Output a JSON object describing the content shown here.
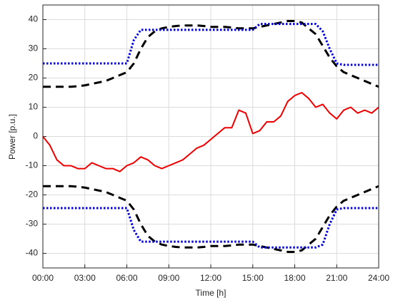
{
  "chart_data": {
    "type": "line",
    "xlabel": "Time [h]",
    "ylabel": "Power [p.u.]",
    "x": [
      0,
      0.5,
      1,
      1.5,
      2,
      2.5,
      3,
      3.5,
      4,
      4.5,
      5,
      5.5,
      6,
      6.5,
      7,
      7.5,
      8,
      8.5,
      9,
      9.5,
      10,
      10.5,
      11,
      11.5,
      12,
      12.5,
      13,
      13.5,
      14,
      14.5,
      15,
      15.5,
      16,
      16.5,
      17,
      17.5,
      18,
      18.5,
      19,
      19.5,
      20,
      20.5,
      21,
      21.5,
      22,
      22.5,
      23,
      23.5,
      24
    ],
    "series": [
      {
        "color": "#000000",
        "line_style": "dashed",
        "values": [
          17,
          17,
          17,
          17,
          17,
          17.2,
          17.5,
          18,
          18.5,
          19,
          20,
          21,
          22,
          25,
          30,
          34,
          36,
          37,
          37.5,
          37.8,
          38,
          38,
          38,
          37.8,
          37.5,
          37.5,
          37.5,
          37.3,
          37,
          37,
          37,
          37.5,
          38,
          38.5,
          39,
          39.5,
          39.5,
          39,
          37,
          35,
          31,
          27,
          24,
          22,
          21,
          20,
          19,
          18,
          17
        ]
      },
      {
        "color": "#000000",
        "line_style": "dashed",
        "values": [
          -17,
          -17,
          -17,
          -17,
          -17,
          -17.2,
          -17.5,
          -18,
          -18.5,
          -19,
          -20,
          -21,
          -22,
          -25,
          -30,
          -34,
          -36,
          -37,
          -37.5,
          -37.8,
          -38,
          -38,
          -38,
          -37.8,
          -37.5,
          -37.5,
          -37.5,
          -37.3,
          -37,
          -37,
          -37,
          -37.5,
          -38,
          -38.5,
          -39,
          -39.5,
          -39.5,
          -39,
          -37,
          -35,
          -31,
          -27,
          -24,
          -22,
          -21,
          -20,
          -19,
          -18,
          -17
        ]
      },
      {
        "color": "#0000dd",
        "line_style": "dotted",
        "values": [
          25,
          25,
          25,
          25,
          25,
          25,
          25,
          25,
          25,
          25,
          25,
          25,
          25,
          33,
          36.5,
          36.5,
          36.5,
          36.5,
          36.5,
          36.5,
          36.5,
          36.5,
          36.5,
          36.5,
          36.5,
          36.5,
          36.5,
          36.5,
          36.5,
          36.5,
          36.5,
          38.5,
          38.5,
          38.5,
          38.5,
          38.5,
          38.5,
          38.5,
          38.5,
          38.5,
          36,
          30,
          25,
          24.5,
          24.5,
          24.5,
          24.5,
          24.5,
          24.5
        ]
      },
      {
        "color": "#0000dd",
        "line_style": "dotted",
        "values": [
          -24.5,
          -24.5,
          -24.5,
          -24.5,
          -24.5,
          -24.5,
          -24.5,
          -24.5,
          -24.5,
          -24.5,
          -24.5,
          -24.5,
          -24.5,
          -32,
          -36,
          -36,
          -36,
          -36,
          -36,
          -36,
          -36,
          -36,
          -36,
          -36,
          -36,
          -36,
          -36,
          -36,
          -36,
          -36,
          -36,
          -38,
          -38,
          -38,
          -38,
          -38,
          -38,
          -38,
          -38,
          -38,
          -37,
          -30,
          -25,
          -24.5,
          -24.5,
          -24.5,
          -24.5,
          -24.5,
          -24.5
        ]
      },
      {
        "color": "#ee0000",
        "line_style": "solid",
        "values": [
          0,
          -3,
          -8,
          -10,
          -10,
          -11,
          -11,
          -9,
          -10,
          -11,
          -11,
          -12,
          -10,
          -9,
          -7,
          -8,
          -10,
          -11,
          -10,
          -9,
          -8,
          -6,
          -4,
          -3,
          -1,
          1,
          3,
          3,
          9,
          8,
          1,
          2,
          5,
          5,
          7,
          12,
          14,
          15,
          13,
          10,
          11,
          8,
          6,
          9,
          10,
          8,
          9,
          8,
          10
        ]
      }
    ],
    "xlim": [
      0,
      24
    ],
    "xticks": [
      {
        "value": 0,
        "label": "00:00"
      },
      {
        "value": 3,
        "label": "03:00"
      },
      {
        "value": 6,
        "label": "06:00"
      },
      {
        "value": 9,
        "label": "09:00"
      },
      {
        "value": 12,
        "label": "12:00"
      },
      {
        "value": 15,
        "label": "15:00"
      },
      {
        "value": 18,
        "label": "18:00"
      },
      {
        "value": 21,
        "label": "21:00"
      },
      {
        "value": 24,
        "label": "24:00"
      }
    ],
    "ylim": [
      -45,
      45
    ],
    "yticks": [
      -40,
      -30,
      -20,
      -10,
      0,
      10,
      20,
      30,
      40
    ],
    "grid": true
  }
}
